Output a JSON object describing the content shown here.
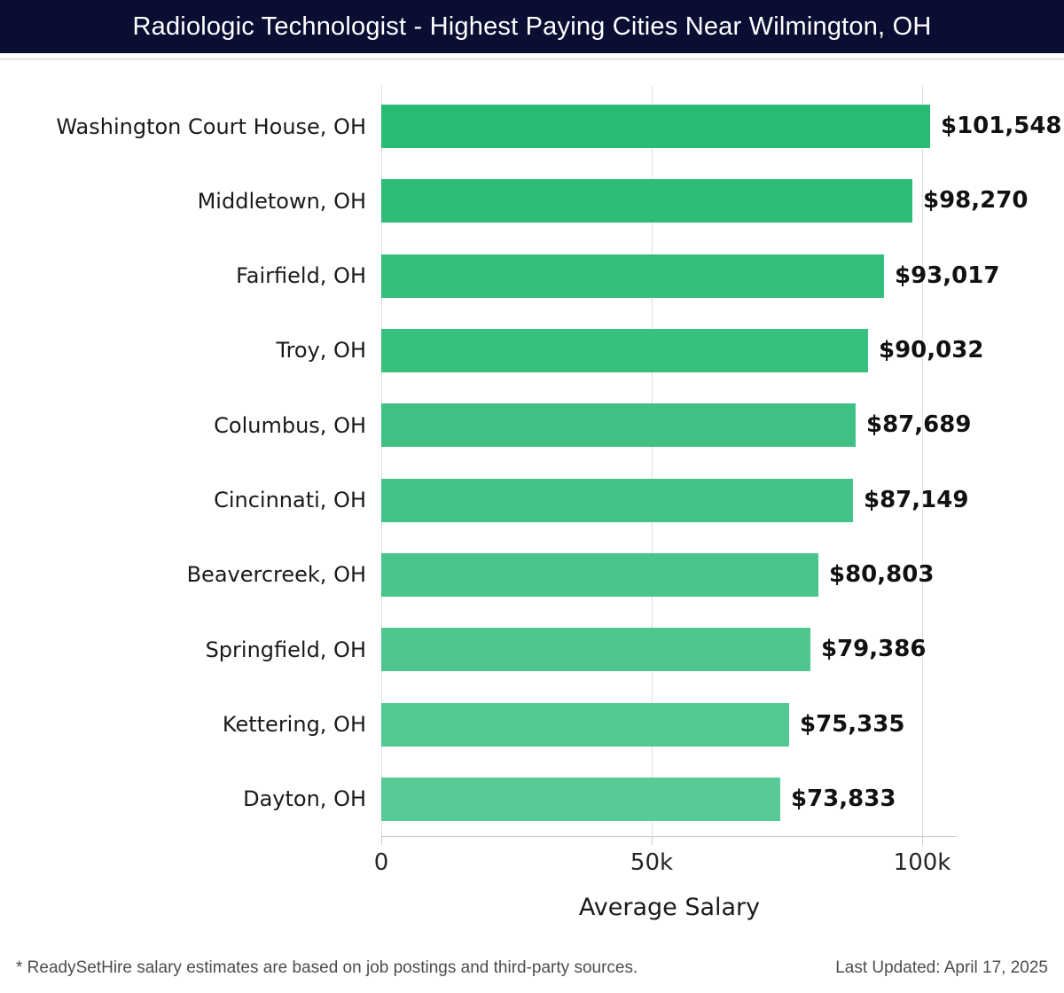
{
  "header": {
    "title": "Radiologic Technologist - Highest Paying Cities Near Wilmington, OH"
  },
  "chart_data": {
    "type": "bar",
    "orientation": "horizontal",
    "title": "Radiologic Technologist - Highest Paying Cities Near Wilmington, OH",
    "categories": [
      "Washington Court House, OH",
      "Middletown, OH",
      "Fairfield, OH",
      "Troy, OH",
      "Columbus, OH",
      "Cincinnati, OH",
      "Beavercreek, OH",
      "Springfield, OH",
      "Kettering, OH",
      "Dayton, OH"
    ],
    "values": [
      101548,
      98270,
      93017,
      90032,
      87689,
      87149,
      80803,
      79386,
      75335,
      73833
    ],
    "value_labels": [
      "$101,548",
      "$98,270",
      "$93,017",
      "$90,032",
      "$87,689",
      "$87,149",
      "$80,803",
      "$79,386",
      "$75,335",
      "$73,833"
    ],
    "bar_colors": [
      "#29ba74",
      "#2ebc78",
      "#33be7c",
      "#38c07f",
      "#3ec183",
      "#43c387",
      "#48c58a",
      "#4dc78e",
      "#52c991",
      "#57cb95"
    ],
    "xlabel": "Average Salary",
    "x_ticks": [
      {
        "value": 0,
        "label": "0"
      },
      {
        "value": 50000,
        "label": "50k"
      },
      {
        "value": 100000,
        "label": "100k"
      }
    ],
    "xlim": [
      0,
      106500
    ],
    "grid": "vertical gridlines at ticks",
    "legend": "none"
  },
  "footer": {
    "note": "* ReadySetHire salary estimates are based on job postings and third-party sources.",
    "last_updated": "Last Updated: April 17, 2025"
  },
  "colors": {
    "header_bg": "#0a0e33",
    "header_text": "#ffffff",
    "background": "#ffffff",
    "gridline": "#dedede",
    "axis_line": "#cccccc",
    "label_text": "#1a1a1a",
    "value_text": "#111111",
    "tick_text": "#262626",
    "footer_text": "#4d4d4d"
  }
}
